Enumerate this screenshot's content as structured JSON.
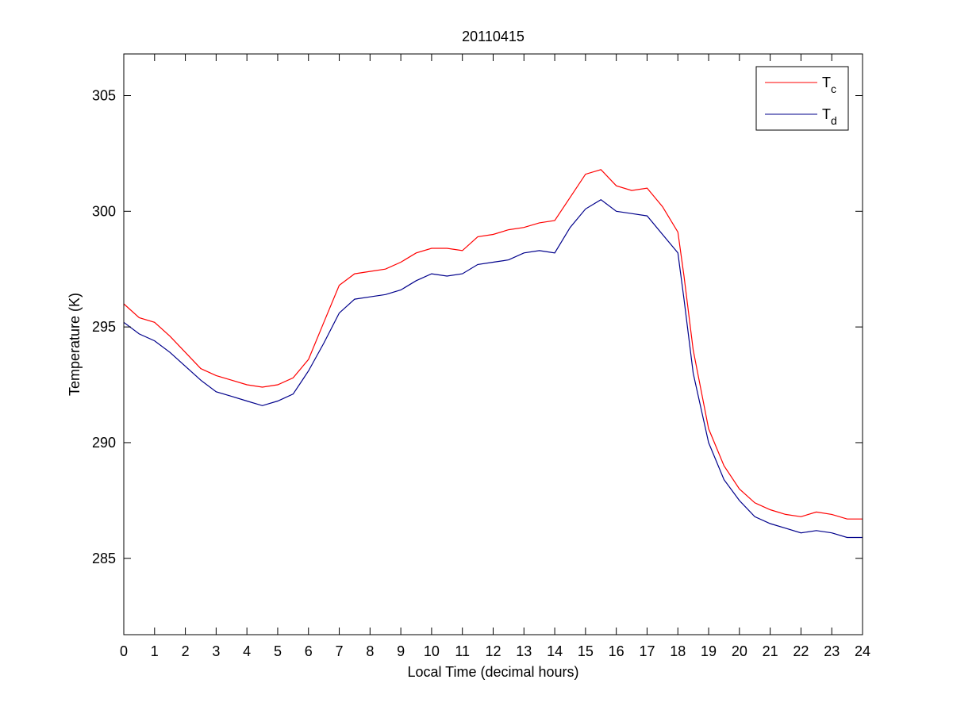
{
  "chart_data": {
    "type": "line",
    "title": "20110415",
    "xlabel": "Local Time (decimal hours)",
    "ylabel": "Temperature (K)",
    "xlim": [
      0,
      24
    ],
    "ylim": [
      281.7,
      306.8
    ],
    "xticks": [
      0,
      1,
      2,
      3,
      4,
      5,
      6,
      7,
      8,
      9,
      10,
      11,
      12,
      13,
      14,
      15,
      16,
      17,
      18,
      19,
      20,
      21,
      22,
      23,
      24
    ],
    "yticks": [
      285,
      290,
      295,
      300,
      305
    ],
    "grid": false,
    "legend_position": "top-right",
    "series": [
      {
        "name": "T",
        "subscript": "c",
        "color": "#ff0000",
        "x": [
          0,
          0.5,
          1,
          1.5,
          2,
          2.5,
          3,
          3.5,
          4,
          4.5,
          5,
          5.5,
          6,
          6.5,
          7,
          7.5,
          8,
          8.5,
          9,
          9.5,
          10,
          10.5,
          11,
          11.5,
          12,
          12.5,
          13,
          13.5,
          14,
          14.5,
          15,
          15.5,
          16,
          16.5,
          17,
          17.5,
          18,
          18.2,
          18.5,
          19,
          19.5,
          20,
          20.5,
          21,
          21.5,
          22,
          22.5,
          23,
          23.5,
          24
        ],
        "y": [
          296.0,
          295.4,
          295.2,
          294.6,
          293.9,
          293.2,
          292.9,
          292.7,
          292.5,
          292.4,
          292.5,
          292.8,
          293.6,
          295.2,
          296.8,
          297.3,
          297.4,
          297.5,
          297.8,
          298.2,
          298.4,
          298.4,
          298.3,
          298.9,
          299.0,
          299.2,
          299.3,
          299.5,
          299.6,
          300.6,
          301.6,
          301.8,
          301.1,
          300.9,
          301.0,
          300.2,
          299.1,
          297.2,
          294.0,
          290.6,
          289.0,
          288.0,
          287.4,
          287.1,
          286.9,
          286.8,
          287.0,
          286.9,
          286.7,
          286.7
        ]
      },
      {
        "name": "T",
        "subscript": "d",
        "color": "#00008b",
        "x": [
          0,
          0.5,
          1,
          1.5,
          2,
          2.5,
          3,
          3.5,
          4,
          4.5,
          5,
          5.5,
          6,
          6.5,
          7,
          7.5,
          8,
          8.5,
          9,
          9.5,
          10,
          10.5,
          11,
          11.5,
          12,
          12.5,
          13,
          13.5,
          14,
          14.5,
          15,
          15.5,
          16,
          16.5,
          17,
          17.5,
          18,
          18.2,
          18.5,
          19,
          19.5,
          20,
          20.5,
          21,
          21.5,
          22,
          22.5,
          23,
          23.5,
          24
        ],
        "y": [
          295.2,
          294.7,
          294.4,
          293.9,
          293.3,
          292.7,
          292.2,
          292.0,
          291.8,
          291.6,
          291.8,
          292.1,
          293.1,
          294.3,
          295.6,
          296.2,
          296.3,
          296.4,
          296.6,
          297.0,
          297.3,
          297.2,
          297.3,
          297.7,
          297.8,
          297.9,
          298.2,
          298.3,
          298.2,
          299.3,
          300.1,
          300.5,
          300.0,
          299.9,
          299.8,
          299.0,
          298.2,
          296.2,
          293.0,
          290.0,
          288.4,
          287.5,
          286.8,
          286.5,
          286.3,
          286.1,
          286.2,
          286.1,
          285.9,
          285.9
        ]
      }
    ]
  }
}
